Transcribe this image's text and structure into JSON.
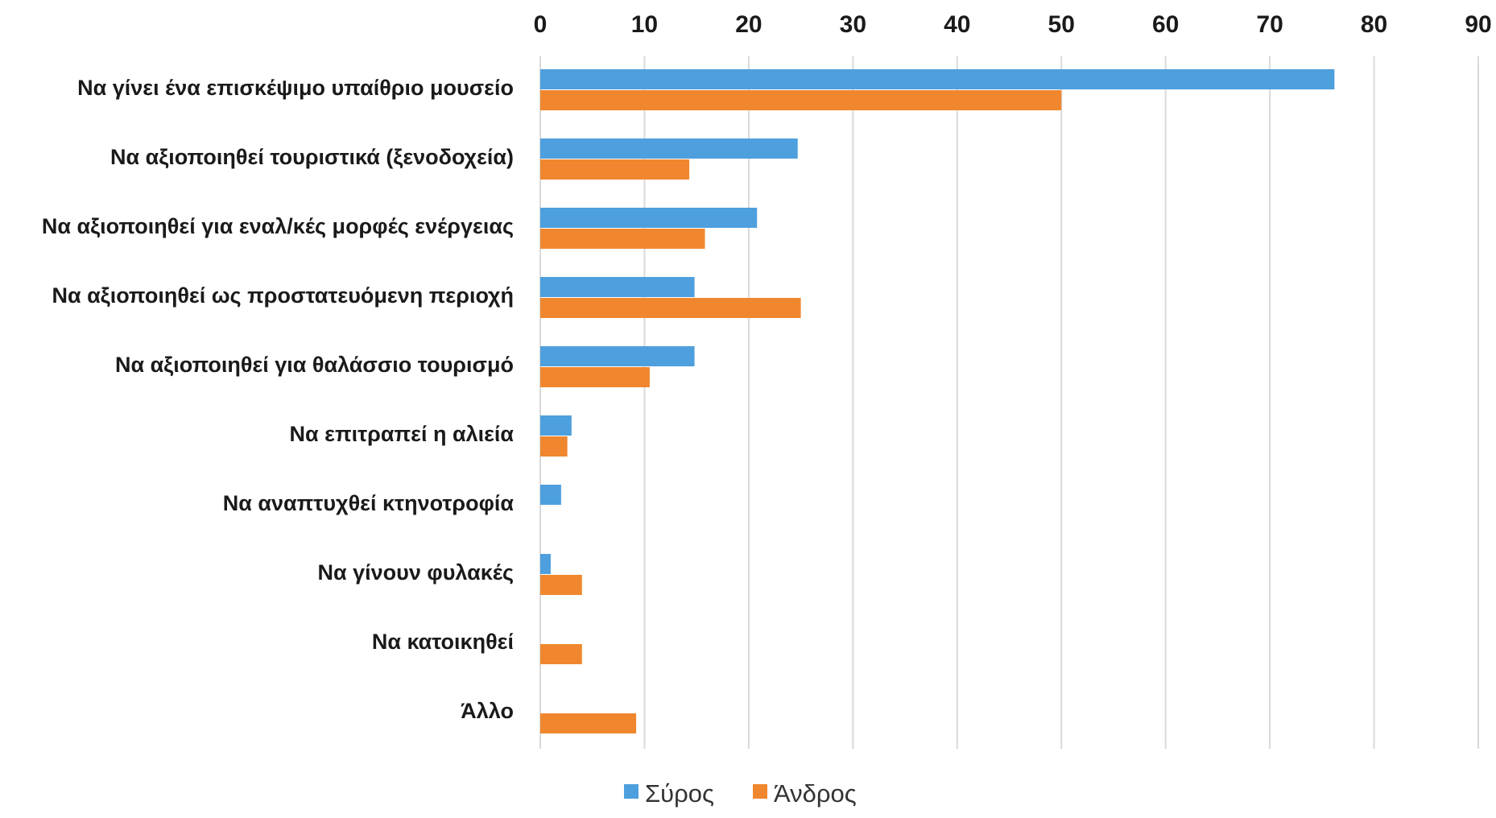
{
  "chart_data": {
    "type": "bar",
    "orientation": "horizontal",
    "categories": [
      "Να γίνει ένα επισκέψιμο υπαίθριο μουσείο",
      "Να αξιοποιηθεί τουριστικά (ξενοδοχεία)",
      "Να αξιοποιηθεί για εναλ/κές μορφές ενέργειας",
      "Να αξιοποιηθεί ως προστατευόμενη περιοχή",
      "Να αξιοποιηθεί για θαλάσσιο τουρισμό",
      "Να επιτραπεί η αλιεία",
      "Να αναπτυχθεί κτηνοτροφία",
      "Να γίνουν φυλακές",
      "Να κατοικηθεί",
      "Άλλο"
    ],
    "series": [
      {
        "name": "Σύρος",
        "color": "#4e9fdd",
        "values": [
          76.2,
          24.7,
          20.8,
          14.8,
          14.8,
          3.0,
          2.0,
          1.0,
          0,
          0
        ]
      },
      {
        "name": "Άνδρος",
        "color": "#f0872e",
        "values": [
          50.0,
          14.3,
          15.8,
          25.0,
          10.5,
          2.6,
          0,
          4.0,
          4.0,
          9.2
        ]
      }
    ],
    "xlim": [
      0,
      90
    ],
    "x_ticks": [
      "0",
      "10",
      "20",
      "30",
      "40",
      "50",
      "60",
      "70",
      "80",
      "90"
    ],
    "x_axis_position": "top",
    "grid": true,
    "legend_position": "bottom",
    "title": "",
    "xlabel": "",
    "ylabel": ""
  }
}
